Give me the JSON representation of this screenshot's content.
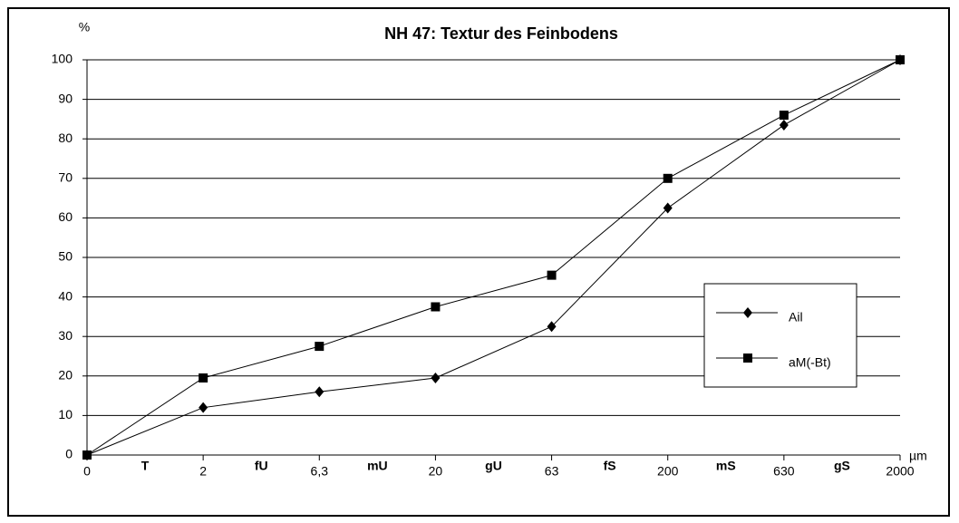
{
  "chart_data": {
    "type": "line",
    "title": "NH 47: Textur des Feinbodens",
    "y_unit": "%",
    "x_unit": "µm",
    "categories": [
      "0",
      "2",
      "6,3",
      "20",
      "63",
      "200",
      "630",
      "2000"
    ],
    "band_labels": [
      "T",
      "fU",
      "mU",
      "gU",
      "fS",
      "mS",
      "gS"
    ],
    "series": [
      {
        "name": "Ail",
        "color": "#000000",
        "marker": "diamond",
        "values": [
          0,
          12,
          16,
          19.5,
          32.5,
          62.5,
          83.5,
          100
        ]
      },
      {
        "name": "aM(-Bt)",
        "color": "#000000",
        "marker": "square",
        "values": [
          0,
          19.5,
          27.5,
          37.5,
          45.5,
          70,
          86,
          100
        ]
      }
    ],
    "ylim": [
      0,
      100
    ],
    "yticks": [
      0,
      10,
      20,
      30,
      40,
      50,
      60,
      70,
      80,
      90,
      100
    ],
    "grid": true,
    "legend": "right"
  }
}
